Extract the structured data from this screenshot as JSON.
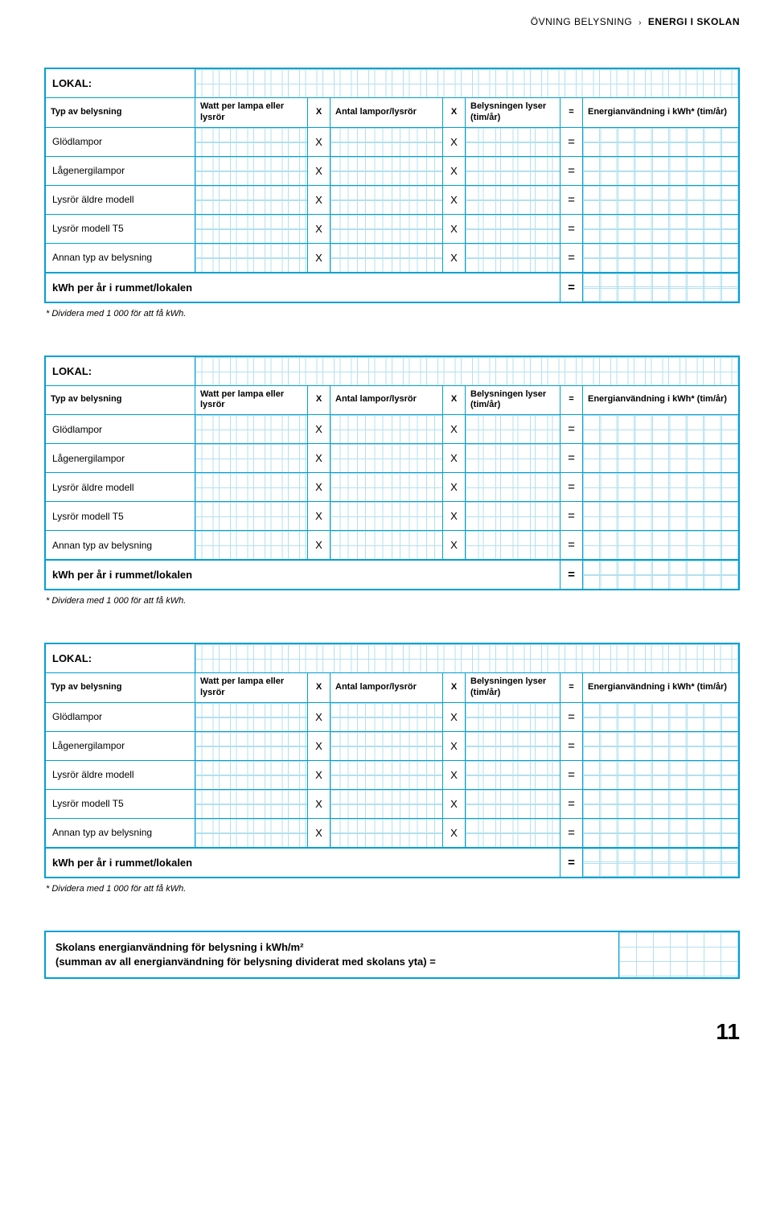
{
  "breadcrumb": {
    "category": "ÖVNING BELYSNING",
    "title": "ENERGI I SKOLAN"
  },
  "table": {
    "lokal_label": "LOKAL:",
    "headers": {
      "typ": "Typ av belysning",
      "watt": "Watt per lampa eller lysrör",
      "x": "X",
      "antal": "Antal lampor/lysrör",
      "tim": "Belysningen lyser (tim/år)",
      "eq": "=",
      "energ": "Energianvändning i kWh* (tim/år)"
    },
    "rows": [
      {
        "label": "Glödlampor"
      },
      {
        "label": "Lågenergilampor"
      },
      {
        "label": "Lysrör äldre modell"
      },
      {
        "label": "Lysrör modell T5"
      },
      {
        "label": "Annan typ av belysning"
      }
    ],
    "sum_label": "kWh per år i rummet/lokalen",
    "x": "X",
    "eq": "=",
    "footnote": "* Dividera med 1 000 för att få kWh."
  },
  "summary": {
    "line1": "Skolans energianvändning för belysning i kWh/m²",
    "line2": "(summan av all energianvändning för belysning dividerat med skolans yta) ="
  },
  "page_number": "11"
}
